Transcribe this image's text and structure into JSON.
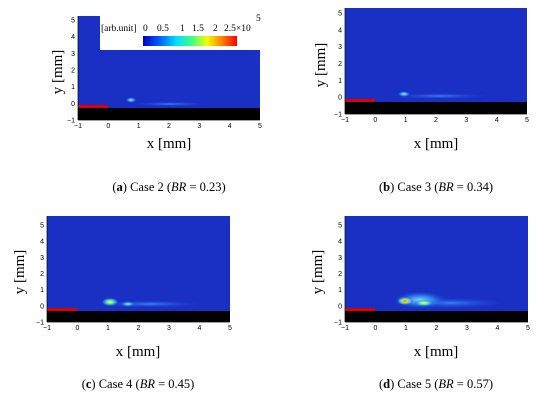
{
  "axes": {
    "xlabel": "x [mm]",
    "ylabel": "y [mm]",
    "xticks": [
      "−1",
      "0",
      "1",
      "2",
      "3",
      "4",
      "5"
    ],
    "yticks": [
      "−1",
      "0",
      "1",
      "2",
      "3",
      "4",
      "5"
    ]
  },
  "colorbar": {
    "unit_label": "[arb.unit]",
    "ticks": [
      "0",
      "0.5",
      "1",
      "1.5",
      "2",
      "2.5×10"
    ],
    "exponent": "5",
    "colormap": [
      "#0000c8",
      "#0060ff",
      "#00e0ff",
      "#40ff80",
      "#f0ff00",
      "#ff8000",
      "#ff0000"
    ]
  },
  "colors": {
    "background_field": "#1a2fc4",
    "wall": "#000000",
    "injector": "#e00000"
  },
  "panels": [
    {
      "caption_letter": "a",
      "caption_text": "Case 2 (",
      "caption_var": "BR",
      "caption_value": " = 0.23)"
    },
    {
      "caption_letter": "b",
      "caption_text": "Case 3 (",
      "caption_var": "BR",
      "caption_value": " = 0.34)"
    },
    {
      "caption_letter": "c",
      "caption_text": "Case 4 (",
      "caption_var": "BR",
      "caption_value": " = 0.45)"
    },
    {
      "caption_letter": "d",
      "caption_text": "Case 5 (",
      "caption_var": "BR",
      "caption_value": " = 0.57)"
    }
  ]
}
